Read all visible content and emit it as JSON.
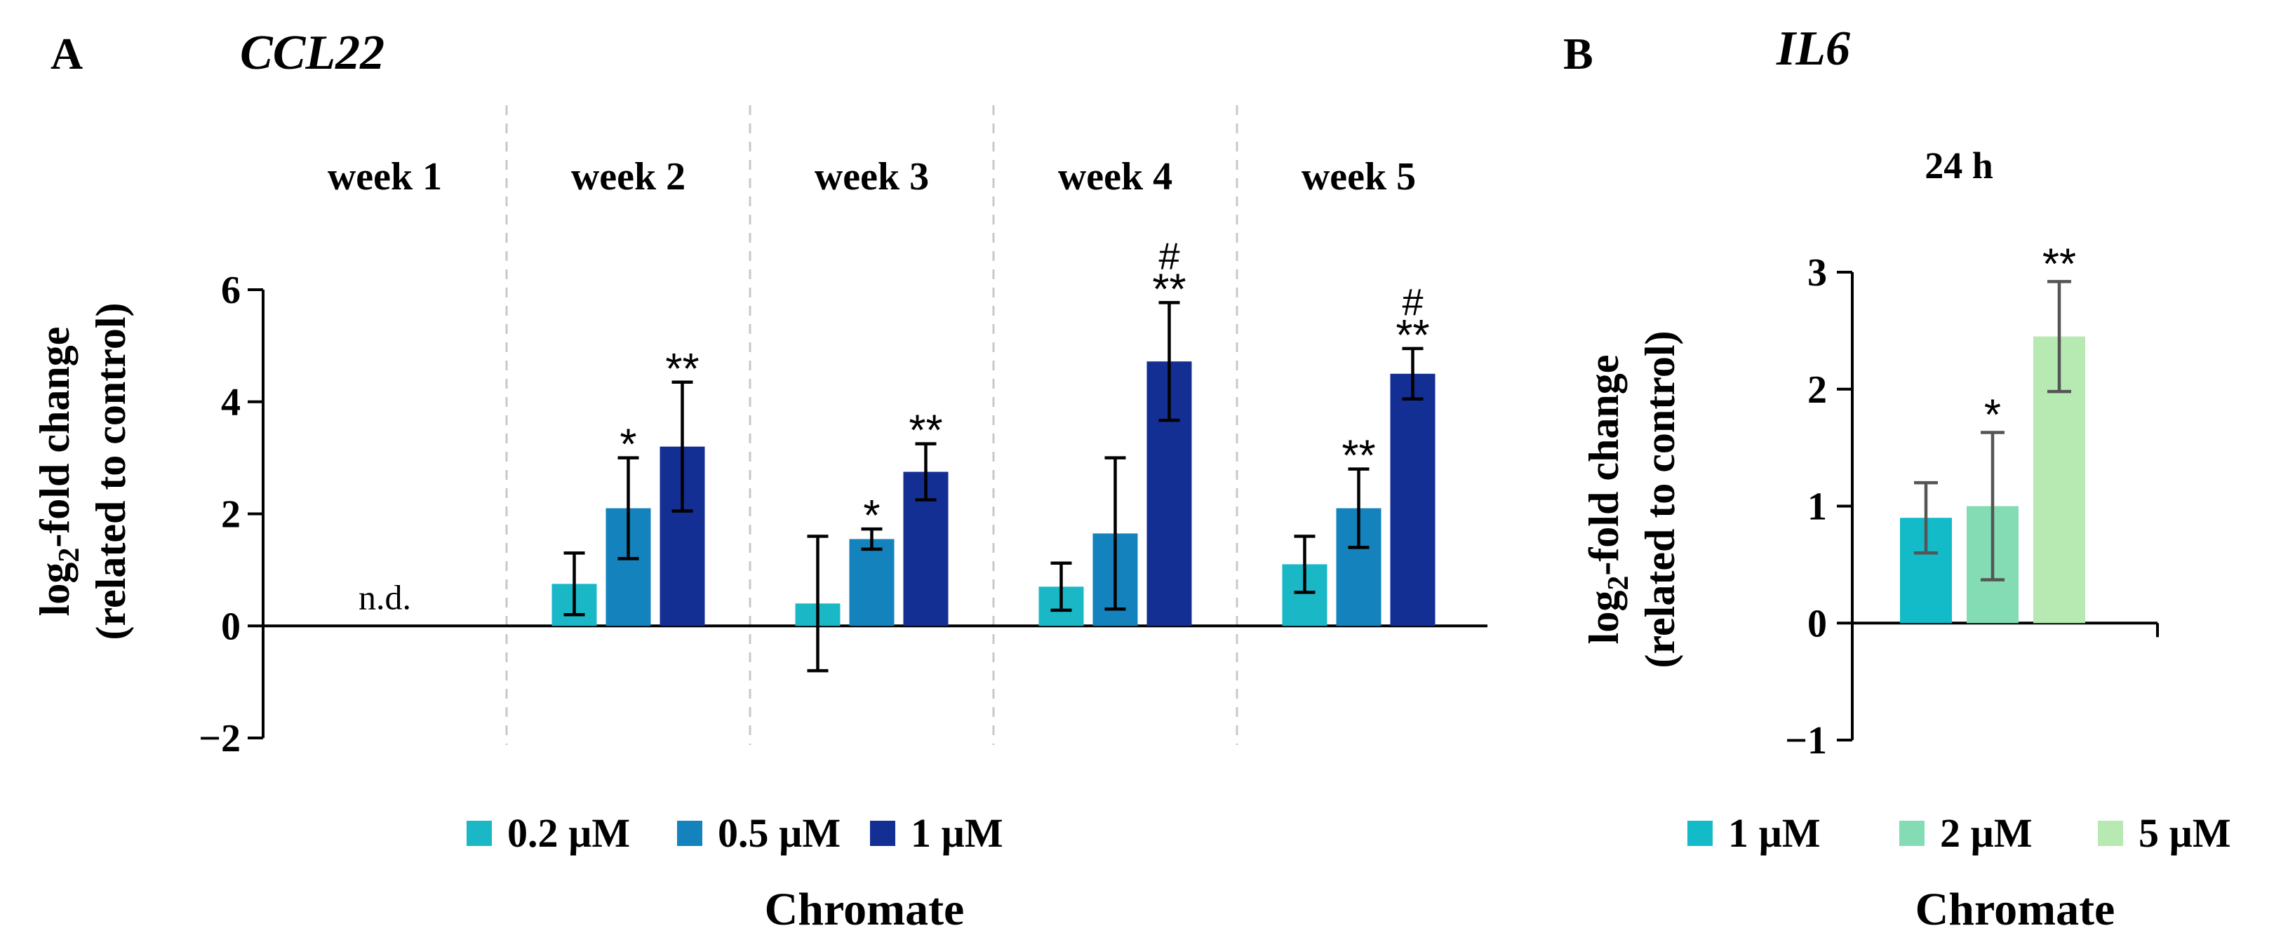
{
  "panels": {
    "a": {
      "label": "A",
      "gene": "CCL22"
    },
    "b": {
      "label": "B",
      "gene": "IL6"
    }
  },
  "chart_data": [
    {
      "type": "bar",
      "title": "CCL22",
      "ylabel_main": "log",
      "ylabel_sub": "2",
      "ylabel_rest": "-fold change",
      "ylabel2": "(related to control)",
      "xlabel": "Chromate",
      "ylim": [
        -2,
        6
      ],
      "yticks": [
        -2,
        0,
        2,
        4,
        6
      ],
      "ytick_labels": [
        "−2",
        "0",
        "2",
        "4",
        "6"
      ],
      "groups": [
        {
          "label": "week 1",
          "note": "n.d.",
          "values": [
            null,
            null,
            null
          ],
          "errors": [
            null,
            null,
            null
          ],
          "stars": [
            "",
            "",
            ""
          ],
          "hash": [
            "",
            "",
            ""
          ]
        },
        {
          "label": "week 2",
          "values": [
            0.75,
            2.1,
            3.2
          ],
          "errors": [
            0.55,
            0.9,
            1.15
          ],
          "stars": [
            "",
            "*",
            "**"
          ],
          "hash": [
            "",
            "",
            ""
          ]
        },
        {
          "label": "week 3",
          "values": [
            0.4,
            1.55,
            2.75
          ],
          "errors": [
            1.2,
            0.18,
            0.5
          ],
          "stars": [
            "",
            "*",
            "**"
          ],
          "hash": [
            "",
            "",
            ""
          ]
        },
        {
          "label": "week 4",
          "values": [
            0.7,
            1.65,
            4.72
          ],
          "errors": [
            0.42,
            1.35,
            1.05
          ],
          "stars": [
            "",
            "",
            "**"
          ],
          "hash": [
            "",
            "",
            "#"
          ]
        },
        {
          "label": "week 5",
          "values": [
            1.1,
            2.1,
            4.5
          ],
          "errors": [
            0.5,
            0.7,
            0.45
          ],
          "stars": [
            "",
            "**",
            "**"
          ],
          "hash": [
            "",
            "",
            "#"
          ]
        }
      ],
      "series": [
        {
          "name": "0.2 µM",
          "color": "#1ab8c6"
        },
        {
          "name": "0.5 µM",
          "color": "#1482bd"
        },
        {
          "name": "1 µM",
          "color": "#142f94"
        }
      ]
    },
    {
      "type": "bar",
      "title": "IL6",
      "subtitle": "24 h",
      "ylabel_main": "log",
      "ylabel_sub": "2",
      "ylabel_rest": "-fold change",
      "ylabel2": "(related to control)",
      "xlabel": "Chromate",
      "ylim": [
        -1,
        3
      ],
      "yticks": [
        -1,
        0,
        1,
        2,
        3
      ],
      "ytick_labels": [
        "−1",
        "0",
        "1",
        "2",
        "3"
      ],
      "values": [
        0.9,
        1.0,
        2.45
      ],
      "errors": [
        0.3,
        0.63,
        0.47
      ],
      "stars": [
        "",
        "*",
        "**"
      ],
      "series": [
        {
          "name": "1 µM",
          "color": "#13bac8"
        },
        {
          "name": "2 µM",
          "color": "#83dcb3"
        },
        {
          "name": "5 µM",
          "color": "#b7e9b2"
        }
      ]
    }
  ]
}
